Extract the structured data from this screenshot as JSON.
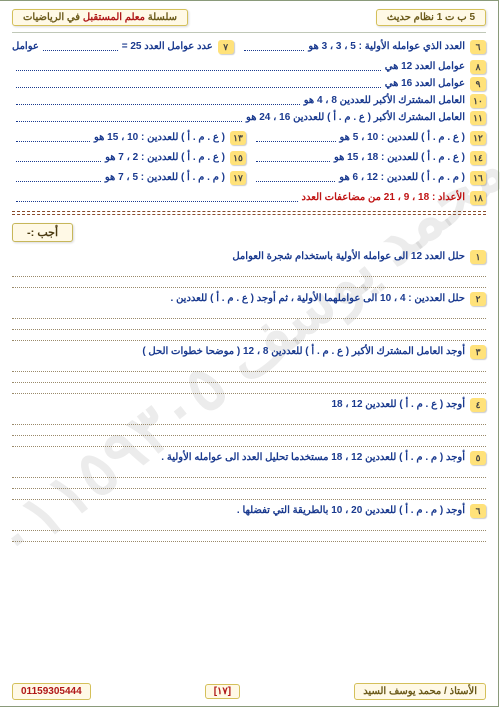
{
  "header": {
    "right_badge": "5 ب ت 1 نظام حديث",
    "left_badge_pre": "سلسلة ",
    "left_badge_hl": "معلم المستقبل",
    "left_badge_post": " في الرياضيات"
  },
  "watermark": "محمد يوسف\n٠١١٥٩٣٠٥",
  "rows": {
    "r6_num": "٦",
    "r6_text": "العدد الذي عوامله الأولية : 5 ، 3 ، 3  هو",
    "r7_num": "٧",
    "r7_text": "عدد عوامل العدد  25 =",
    "r7_tail": "عوامل",
    "r8_num": "٨",
    "r8_text": "عوامل العدد  12  هي",
    "r9_num": "٩",
    "r9_text": "عوامل العدد  16  هي",
    "r10_num": "١٠",
    "r10_text": "العامل المشترك الأكبر للعددين 8 ، 4   هو",
    "r11_num": "١١",
    "r11_text": "العامل المشترك الأكبر ( ع . م . أ )  للعددين 16 ، 24  هو",
    "r12_num": "١٢",
    "r12_text": "( ع . م . أ ) للعددين : 10 ، 5  هو",
    "r13_num": "١٣",
    "r13_text": "( ع . م . أ ) للعددين : 10 ، 15  هو",
    "r14_num": "١٤",
    "r14_text": "( ع . م . أ ) للعددين : 18 ، 15  هو",
    "r15_num": "١٥",
    "r15_text": "( ع . م . أ ) للعددين : 2 ، 7  هو",
    "r16_num": "١٦",
    "r16_text": "( م . م . أ ) للعددين : 12 ، 6  هو",
    "r17_num": "١٧",
    "r17_text": "( م . م . أ ) للعددين : 5 ، 7  هو",
    "r18_num": "١٨",
    "r18_text": "الأعداد : 18 ، 9 ، 21 من مضاعفات العدد"
  },
  "answer_label": "أجب  :-",
  "problems": {
    "p1_num": "١",
    "p1_text": "حلل العدد 12 الى عوامله الأولية باستخدام شجرة العوامل",
    "p2_num": "٢",
    "p2_text": "حلل العددين : 4  ،  10 الى عواملهما الأولية ،  ثم أوجد ( ع . م . أ ) للعددين .",
    "p3_num": "٣",
    "p3_text": "أوجد العامل المشترك الأكبر ( ع . م . أ )   للعددين 8 ، 12   ( موضحا خطوات الحل )",
    "p4_num": "٤",
    "p4_text": "أوجد ( ع . م . أ )   للعددين 12 ، 18",
    "p5_num": "٥",
    "p5_text": "أوجد ( م . م . أ )   للعددين 12 ، 18  مستخدما تحليل العدد الى عوامله الأولية .",
    "p6_num": "٦",
    "p6_text": "أوجد ( م . م . أ )   للعددين 20 ، 10  بالطريقة التي تفضلها ."
  },
  "footer": {
    "teacher": "الأستاذ / محمد يوسف السيد",
    "page": "[١٧]",
    "phone": "01159305444"
  }
}
